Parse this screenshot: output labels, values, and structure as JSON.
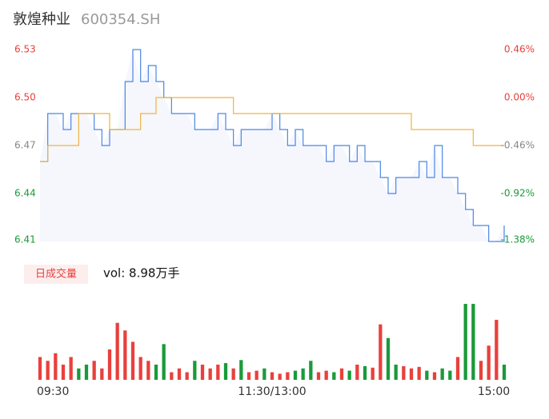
{
  "chart_data": {
    "type": "intraday",
    "title": "敦煌种业",
    "subtitle": "600354.SH",
    "x": [
      0,
      4,
      8,
      12,
      16,
      20,
      24,
      28,
      32,
      36,
      40,
      44,
      48,
      52,
      56,
      60,
      64,
      68,
      72,
      76,
      80,
      84,
      88,
      92,
      96,
      100,
      104,
      108,
      112,
      116,
      120,
      124,
      128,
      132,
      136,
      140,
      144,
      148,
      152,
      156,
      160,
      164,
      168,
      172,
      176,
      180,
      184,
      188,
      192,
      196,
      200,
      204,
      208,
      212,
      216,
      220,
      224,
      228,
      232,
      236,
      240
    ],
    "xlim": [
      0,
      240
    ],
    "xticks": [
      {
        "value": 0,
        "label": "09:30"
      },
      {
        "value": 120,
        "label": "11:30/13:00"
      },
      {
        "value": 240,
        "label": "15:00"
      }
    ],
    "ylim": [
      6.41,
      6.53
    ],
    "yticks": [
      6.53,
      {
        "value": 6.5,
        "label": "6.50"
      },
      6.47,
      6.44,
      6.41
    ],
    "y2lim": [
      -1.38,
      0.46
    ],
    "y2ticks": [
      {
        "value": 0.46,
        "label": "0.46%"
      },
      {
        "value": 0,
        "label": "0.00%"
      },
      {
        "value": -0.46,
        "label": "-0.46%"
      },
      {
        "value": -0.92,
        "label": "-0.92%"
      },
      {
        "value": -1.38,
        "label": "-1.38%"
      }
    ],
    "tick_colors": [
      "#e8413c",
      "#e8413c",
      "#888888",
      "#1a9a3a",
      "#1a9a3a"
    ],
    "series": [
      {
        "name": "price",
        "color": "#4a86e8",
        "values": [
          6.46,
          6.49,
          6.49,
          6.48,
          6.49,
          6.49,
          6.49,
          6.48,
          6.47,
          6.48,
          6.48,
          6.51,
          6.53,
          6.51,
          6.52,
          6.51,
          6.5,
          6.49,
          6.49,
          6.49,
          6.48,
          6.48,
          6.48,
          6.49,
          6.48,
          6.47,
          6.48,
          6.48,
          6.48,
          6.48,
          6.49,
          6.48,
          6.47,
          6.48,
          6.47,
          6.47,
          6.47,
          6.46,
          6.47,
          6.47,
          6.46,
          6.47,
          6.46,
          6.46,
          6.45,
          6.44,
          6.45,
          6.45,
          6.45,
          6.46,
          6.45,
          6.47,
          6.45,
          6.45,
          6.44,
          6.43,
          6.42,
          6.42,
          6.41,
          6.41,
          6.42
        ]
      },
      {
        "name": "average",
        "color": "#f0b43c",
        "values": [
          6.46,
          6.47,
          6.47,
          6.47,
          6.47,
          6.49,
          6.49,
          6.49,
          6.49,
          6.48,
          6.48,
          6.48,
          6.48,
          6.49,
          6.49,
          6.5,
          6.5,
          6.5,
          6.5,
          6.5,
          6.5,
          6.5,
          6.5,
          6.5,
          6.5,
          6.49,
          6.49,
          6.49,
          6.49,
          6.49,
          6.49,
          6.49,
          6.49,
          6.49,
          6.49,
          6.49,
          6.49,
          6.49,
          6.49,
          6.49,
          6.49,
          6.49,
          6.49,
          6.49,
          6.49,
          6.49,
          6.49,
          6.49,
          6.48,
          6.48,
          6.48,
          6.48,
          6.48,
          6.48,
          6.48,
          6.48,
          6.47,
          6.47,
          6.47,
          6.47,
          6.47
        ]
      }
    ],
    "volume_title": "日成交量",
    "volume_label": "vol: 8.98万手",
    "volume_ylim": [
      0,
      1000
    ],
    "volumes": [
      300,
      250,
      350,
      200,
      300,
      150,
      200,
      250,
      150,
      400,
      750,
      650,
      500,
      300,
      250,
      200,
      470,
      100,
      150,
      100,
      250,
      200,
      150,
      200,
      220,
      150,
      260,
      100,
      120,
      150,
      100,
      80,
      100,
      120,
      150,
      250,
      100,
      120,
      100,
      150,
      120,
      200,
      180,
      160,
      730,
      550,
      200,
      180,
      150,
      170,
      120,
      100,
      150,
      120,
      300,
      1000,
      1000,
      250,
      450,
      790,
      200
    ],
    "volume_colors": [
      "#e8413c",
      "#e8413c",
      "#e8413c",
      "#e8413c",
      "#e8413c",
      "#1a9a3a",
      "#1a9a3a",
      "#e8413c",
      "#e8413c",
      "#e8413c",
      "#e8413c",
      "#e8413c",
      "#e8413c",
      "#e8413c",
      "#e8413c",
      "#1a9a3a",
      "#1a9a3a",
      "#e8413c",
      "#e8413c",
      "#e8413c",
      "#1a9a3a",
      "#e8413c",
      "#e8413c",
      "#e8413c",
      "#1a9a3a",
      "#e8413c",
      "#1a9a3a",
      "#e8413c",
      "#e8413c",
      "#1a9a3a",
      "#e8413c",
      "#e8413c",
      "#e8413c",
      "#1a9a3a",
      "#1a9a3a",
      "#1a9a3a",
      "#e8413c",
      "#e8413c",
      "#1a9a3a",
      "#e8413c",
      "#1a9a3a",
      "#e8413c",
      "#1a9a3a",
      "#e8413c",
      "#e8413c",
      "#1a9a3a",
      "#1a9a3a",
      "#e8413c",
      "#e8413c",
      "#e8413c",
      "#1a9a3a",
      "#e8413c",
      "#1a9a3a",
      "#1a9a3a",
      "#e8413c",
      "#1a9a3a",
      "#1a9a3a",
      "#e8413c",
      "#e8413c",
      "#e8413c",
      "#1a9a3a"
    ],
    "area_color": "#f5f7fd"
  }
}
